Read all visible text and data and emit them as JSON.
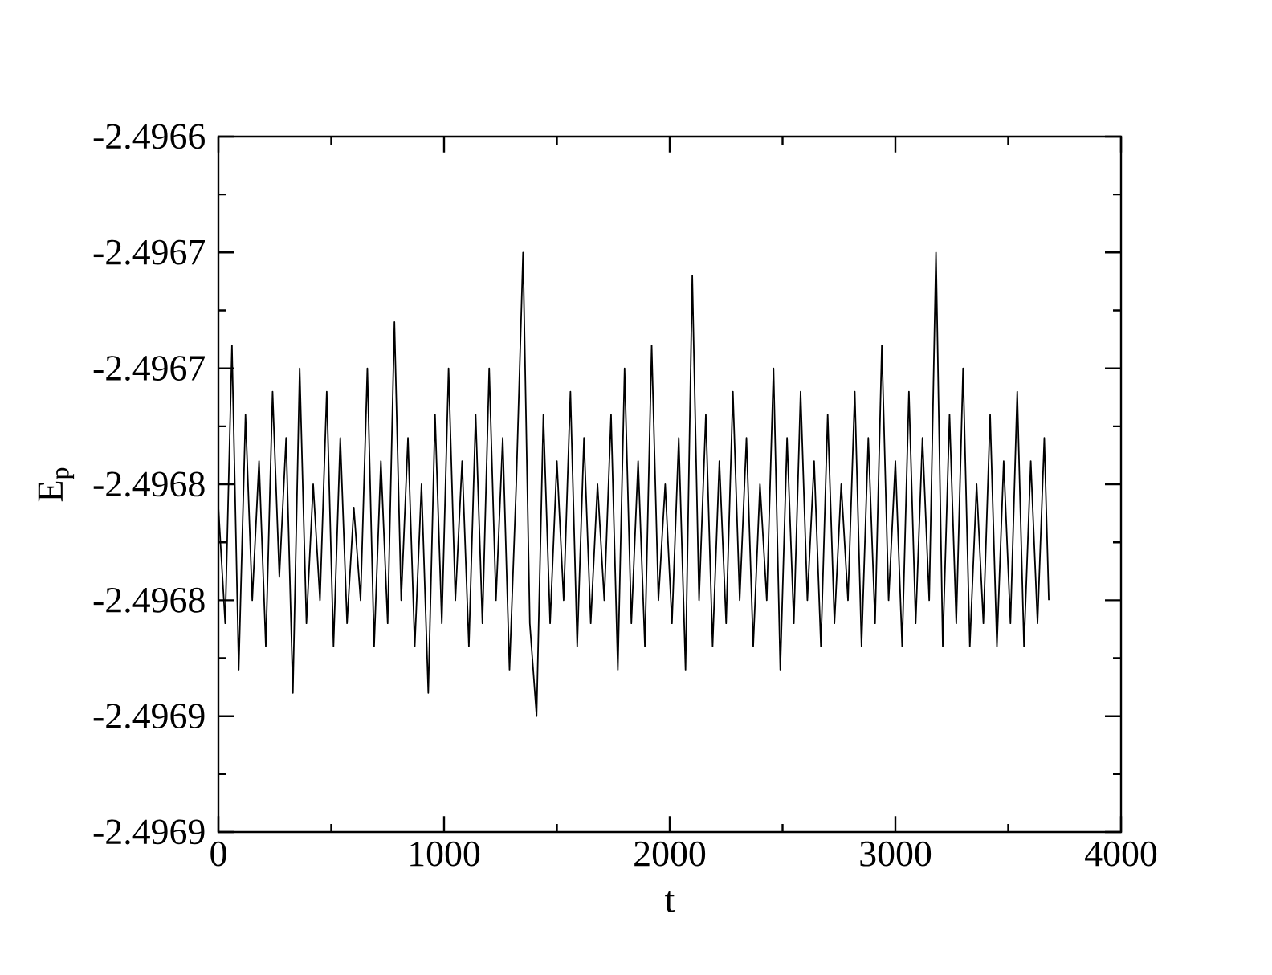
{
  "chart_data": {
    "type": "line",
    "xlabel": "t",
    "ylabel": "E$_{p}$",
    "xlim": [
      0,
      4000
    ],
    "xticks": [
      0,
      1000,
      2000,
      3000,
      4000
    ],
    "ylim": [
      -2.4969,
      -2.4966
    ],
    "yticks": [
      {
        "value": -2.4969,
        "label": "-2.4969"
      },
      {
        "value": -2.49685,
        "label": "-2.4969"
      },
      {
        "value": -2.4968,
        "label": "-2.4968"
      },
      {
        "value": -2.49675,
        "label": "-2.4968"
      },
      {
        "value": -2.4967,
        "label": "-2.4967"
      },
      {
        "value": -2.49665,
        "label": "-2.4967"
      },
      {
        "value": -2.4966,
        "label": "-2.4966"
      }
    ],
    "series": [
      {
        "color": "#000000",
        "x": [
          0,
          30,
          60,
          90,
          120,
          150,
          180,
          210,
          240,
          270,
          300,
          330,
          360,
          390,
          420,
          450,
          480,
          510,
          540,
          570,
          600,
          630,
          660,
          690,
          720,
          750,
          780,
          810,
          840,
          870,
          900,
          930,
          960,
          990,
          1020,
          1050,
          1080,
          1110,
          1140,
          1170,
          1200,
          1230,
          1260,
          1290,
          1320,
          1350,
          1380,
          1410,
          1440,
          1470,
          1500,
          1530,
          1560,
          1590,
          1620,
          1650,
          1680,
          1710,
          1740,
          1770,
          1800,
          1830,
          1860,
          1890,
          1920,
          1950,
          1980,
          2010,
          2040,
          2070,
          2100,
          2130,
          2160,
          2190,
          2220,
          2250,
          2280,
          2310,
          2340,
          2370,
          2400,
          2430,
          2460,
          2490,
          2520,
          2550,
          2580,
          2610,
          2640,
          2670,
          2700,
          2730,
          2760,
          2790,
          2820,
          2850,
          2880,
          2910,
          2940,
          2970,
          3000,
          3030,
          3060,
          3090,
          3120,
          3150,
          3180,
          3210,
          3240,
          3270,
          3300,
          3330,
          3360,
          3390,
          3420,
          3450,
          3480,
          3510,
          3540,
          3570,
          3600,
          3630,
          3660,
          3680
        ],
        "values": [
          -2.49676,
          -2.49681,
          -2.49669,
          -2.49683,
          -2.49672,
          -2.4968,
          -2.49674,
          -2.49682,
          -2.49671,
          -2.49679,
          -2.49673,
          -2.49684,
          -2.4967,
          -2.49681,
          -2.49675,
          -2.4968,
          -2.49671,
          -2.49682,
          -2.49673,
          -2.49681,
          -2.49676,
          -2.4968,
          -2.4967,
          -2.49682,
          -2.49674,
          -2.49681,
          -2.49668,
          -2.4968,
          -2.49673,
          -2.49682,
          -2.49675,
          -2.49684,
          -2.49672,
          -2.49681,
          -2.4967,
          -2.4968,
          -2.49674,
          -2.49682,
          -2.49672,
          -2.49681,
          -2.4967,
          -2.4968,
          -2.49673,
          -2.49683,
          -2.49675,
          -2.49665,
          -2.49681,
          -2.49685,
          -2.49672,
          -2.49681,
          -2.49674,
          -2.4968,
          -2.49671,
          -2.49682,
          -2.49673,
          -2.49681,
          -2.49675,
          -2.4968,
          -2.49672,
          -2.49683,
          -2.4967,
          -2.49681,
          -2.49674,
          -2.49682,
          -2.49669,
          -2.4968,
          -2.49675,
          -2.49681,
          -2.49673,
          -2.49683,
          -2.49666,
          -2.4968,
          -2.49672,
          -2.49682,
          -2.49674,
          -2.49681,
          -2.49671,
          -2.4968,
          -2.49673,
          -2.49682,
          -2.49675,
          -2.4968,
          -2.4967,
          -2.49683,
          -2.49673,
          -2.49681,
          -2.49671,
          -2.4968,
          -2.49674,
          -2.49682,
          -2.49672,
          -2.49681,
          -2.49675,
          -2.4968,
          -2.49671,
          -2.49682,
          -2.49673,
          -2.49681,
          -2.49669,
          -2.4968,
          -2.49674,
          -2.49682,
          -2.49671,
          -2.49681,
          -2.49673,
          -2.4968,
          -2.49665,
          -2.49682,
          -2.49672,
          -2.49681,
          -2.4967,
          -2.49682,
          -2.49675,
          -2.49681,
          -2.49672,
          -2.49682,
          -2.49674,
          -2.49681,
          -2.49671,
          -2.49682,
          -2.49674,
          -2.49681,
          -2.49673,
          -2.4968
        ]
      }
    ]
  }
}
